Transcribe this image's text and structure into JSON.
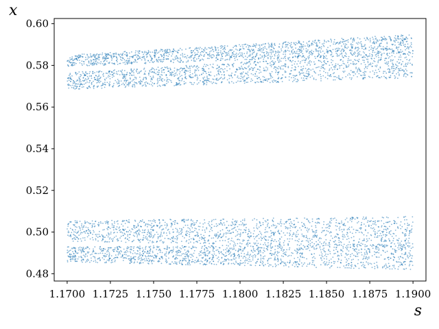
{
  "chart_data": {
    "type": "scatter",
    "title": "",
    "xlabel": "s",
    "ylabel": "x",
    "xlim": [
      1.16925,
      1.19075
    ],
    "ylim": [
      0.4765,
      0.6025
    ],
    "x_ticks": [
      1.17,
      1.1725,
      1.175,
      1.1775,
      1.18,
      1.1825,
      1.185,
      1.1875,
      1.19
    ],
    "x_tick_labels": [
      "1.1700",
      "1.1725",
      "1.1750",
      "1.1775",
      "1.1800",
      "1.1825",
      "1.1850",
      "1.1875",
      "1.1900"
    ],
    "y_ticks": [
      0.48,
      0.5,
      0.52,
      0.54,
      0.56,
      0.58,
      0.6
    ],
    "y_tick_labels": [
      "0.48",
      "0.50",
      "0.52",
      "0.54",
      "0.56",
      "0.58",
      "0.60"
    ],
    "grid": false,
    "series": [
      {
        "color": "#1f77b4",
        "description_bands": "point cloud filling four bands; each band given by lower/upper x at s_start and s_end",
        "bands": [
          {
            "s": [
              1.17,
              1.19
            ],
            "lower": [
              0.5795,
              0.5855
            ],
            "upper": [
              0.585,
              0.595
            ]
          },
          {
            "s": [
              1.17,
              1.19
            ],
            "lower": [
              0.5685,
              0.574
            ],
            "upper": [
              0.5765,
              0.5865
            ]
          },
          {
            "s": [
              1.17,
              1.19
            ],
            "lower": [
              0.4955,
              0.4925
            ],
            "upper": [
              0.5055,
              0.5075
            ]
          },
          {
            "s": [
              1.17,
              1.19
            ],
            "lower": [
              0.4855,
              0.482
            ],
            "upper": [
              0.493,
              0.4945
            ]
          }
        ]
      }
    ]
  }
}
